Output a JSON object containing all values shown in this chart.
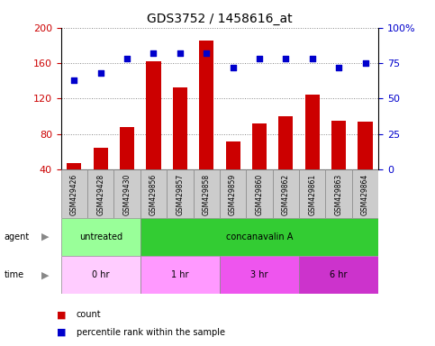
{
  "title": "GDS3752 / 1458616_at",
  "samples": [
    "GSM429426",
    "GSM429428",
    "GSM429430",
    "GSM429856",
    "GSM429857",
    "GSM429858",
    "GSM429859",
    "GSM429860",
    "GSM429862",
    "GSM429861",
    "GSM429863",
    "GSM429864"
  ],
  "counts": [
    47,
    65,
    88,
    162,
    133,
    185,
    72,
    92,
    100,
    125,
    95,
    94
  ],
  "percentiles": [
    63,
    68,
    78,
    82,
    82,
    82,
    72,
    78,
    78,
    78,
    72,
    75
  ],
  "ylim_left": [
    40,
    200
  ],
  "ylim_right": [
    0,
    100
  ],
  "yticks_left": [
    40,
    80,
    120,
    160,
    200
  ],
  "yticks_right": [
    0,
    25,
    50,
    75,
    100
  ],
  "bar_color": "#cc0000",
  "dot_color": "#0000cc",
  "grid_color": "#888888",
  "agent_groups": [
    {
      "label": "untreated",
      "start": 0,
      "end": 3,
      "color": "#99ff99"
    },
    {
      "label": "concanavalin A",
      "start": 3,
      "end": 12,
      "color": "#33cc33"
    }
  ],
  "time_groups": [
    {
      "label": "0 hr",
      "start": 0,
      "end": 3,
      "color": "#ffccff"
    },
    {
      "label": "1 hr",
      "start": 3,
      "end": 6,
      "color": "#ff99ff"
    },
    {
      "label": "3 hr",
      "start": 6,
      "end": 9,
      "color": "#ee55ee"
    },
    {
      "label": "6 hr",
      "start": 9,
      "end": 12,
      "color": "#cc33cc"
    }
  ],
  "tick_bg_color": "#cccccc",
  "legend_items": [
    {
      "label": "count",
      "color": "#cc0000"
    },
    {
      "label": "percentile rank within the sample",
      "color": "#0000cc"
    }
  ]
}
